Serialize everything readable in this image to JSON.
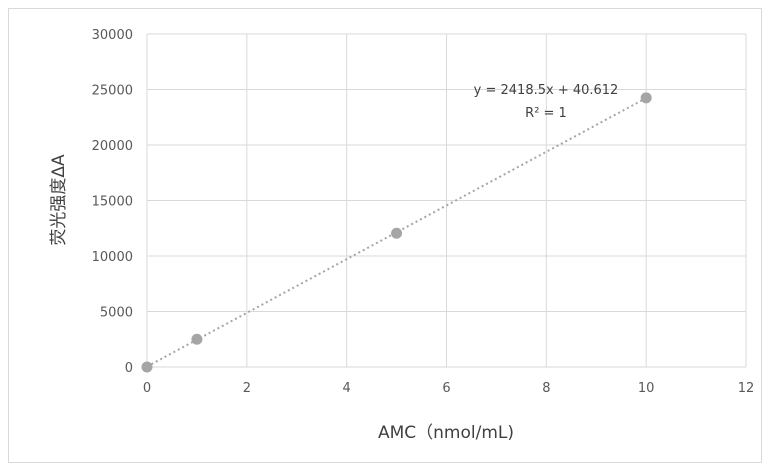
{
  "chart_data": {
    "type": "scatter",
    "xlabel": "AMC（nmol/mL)",
    "ylabel": "荧光强度ΔA",
    "xlim": [
      0,
      12
    ],
    "ylim": [
      0,
      30000
    ],
    "x_ticks": [
      "0",
      "2",
      "4",
      "6",
      "8",
      "10",
      "12"
    ],
    "y_ticks": [
      "0",
      "5000",
      "10000",
      "15000",
      "20000",
      "25000",
      "30000"
    ],
    "grid": true,
    "series": [
      {
        "x": [
          0,
          1,
          5,
          10
        ],
        "y": [
          0,
          2500,
          12050,
          24250
        ],
        "color": "#a5a5a5"
      }
    ],
    "trendline": {
      "type": "linear",
      "slope": 2418.5,
      "intercept": 40.612,
      "equation": "y = 2418.5x + 40.612",
      "r_squared": "R² = 1",
      "color": "#a5a5a5"
    }
  }
}
